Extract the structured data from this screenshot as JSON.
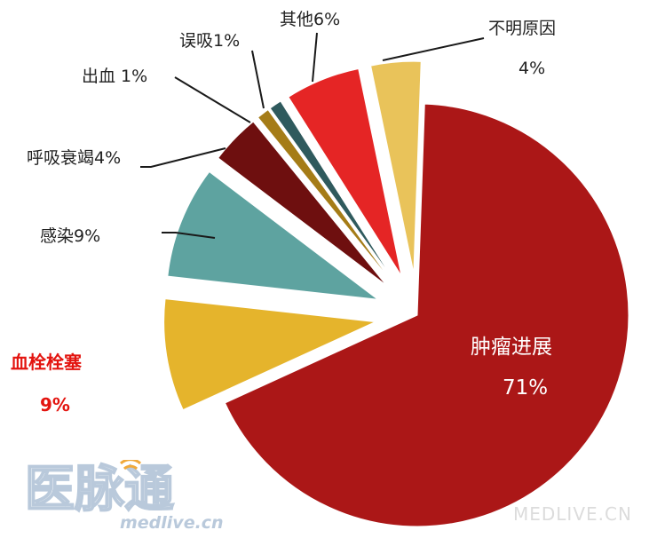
{
  "chart_data": {
    "type": "pie",
    "exploded": true,
    "slices": [
      {
        "label": "肿瘤进展",
        "value": 71,
        "pct_text": "71%",
        "color": "#ab1717",
        "text_color": "#ffffff"
      },
      {
        "label": "血栓栓塞",
        "value": 9,
        "pct_text": "9%",
        "color": "#e5b42c",
        "text_color": "#e3140f"
      },
      {
        "label": "感染",
        "value": 9,
        "pct_text": "9%",
        "color": "#5ea3a0",
        "text_color": "#222222"
      },
      {
        "label": "呼吸衰竭",
        "value": 4,
        "pct_text": "4%",
        "color": "#6e0f0f",
        "text_color": "#222222"
      },
      {
        "label": "出血 ",
        "value": 1,
        "pct_text": "1%",
        "color": "#a57c17",
        "text_color": "#222222"
      },
      {
        "label": "误吸",
        "value": 1,
        "pct_text": "1%",
        "color": "#2f5a5d",
        "text_color": "#222222"
      },
      {
        "label": "其他",
        "value": 6,
        "pct_text": "6%",
        "color": "#e52525",
        "text_color": "#222222"
      },
      {
        "label": "不明原因",
        "value": 4,
        "pct_text": "4%",
        "color": "#e9c35a",
        "text_color": "#222222"
      }
    ]
  },
  "watermark": {
    "logo_text": "医脉通",
    "site": "medlive.cn",
    "brand": "MEDLIVE.CN",
    "color": "#b9c9db"
  }
}
